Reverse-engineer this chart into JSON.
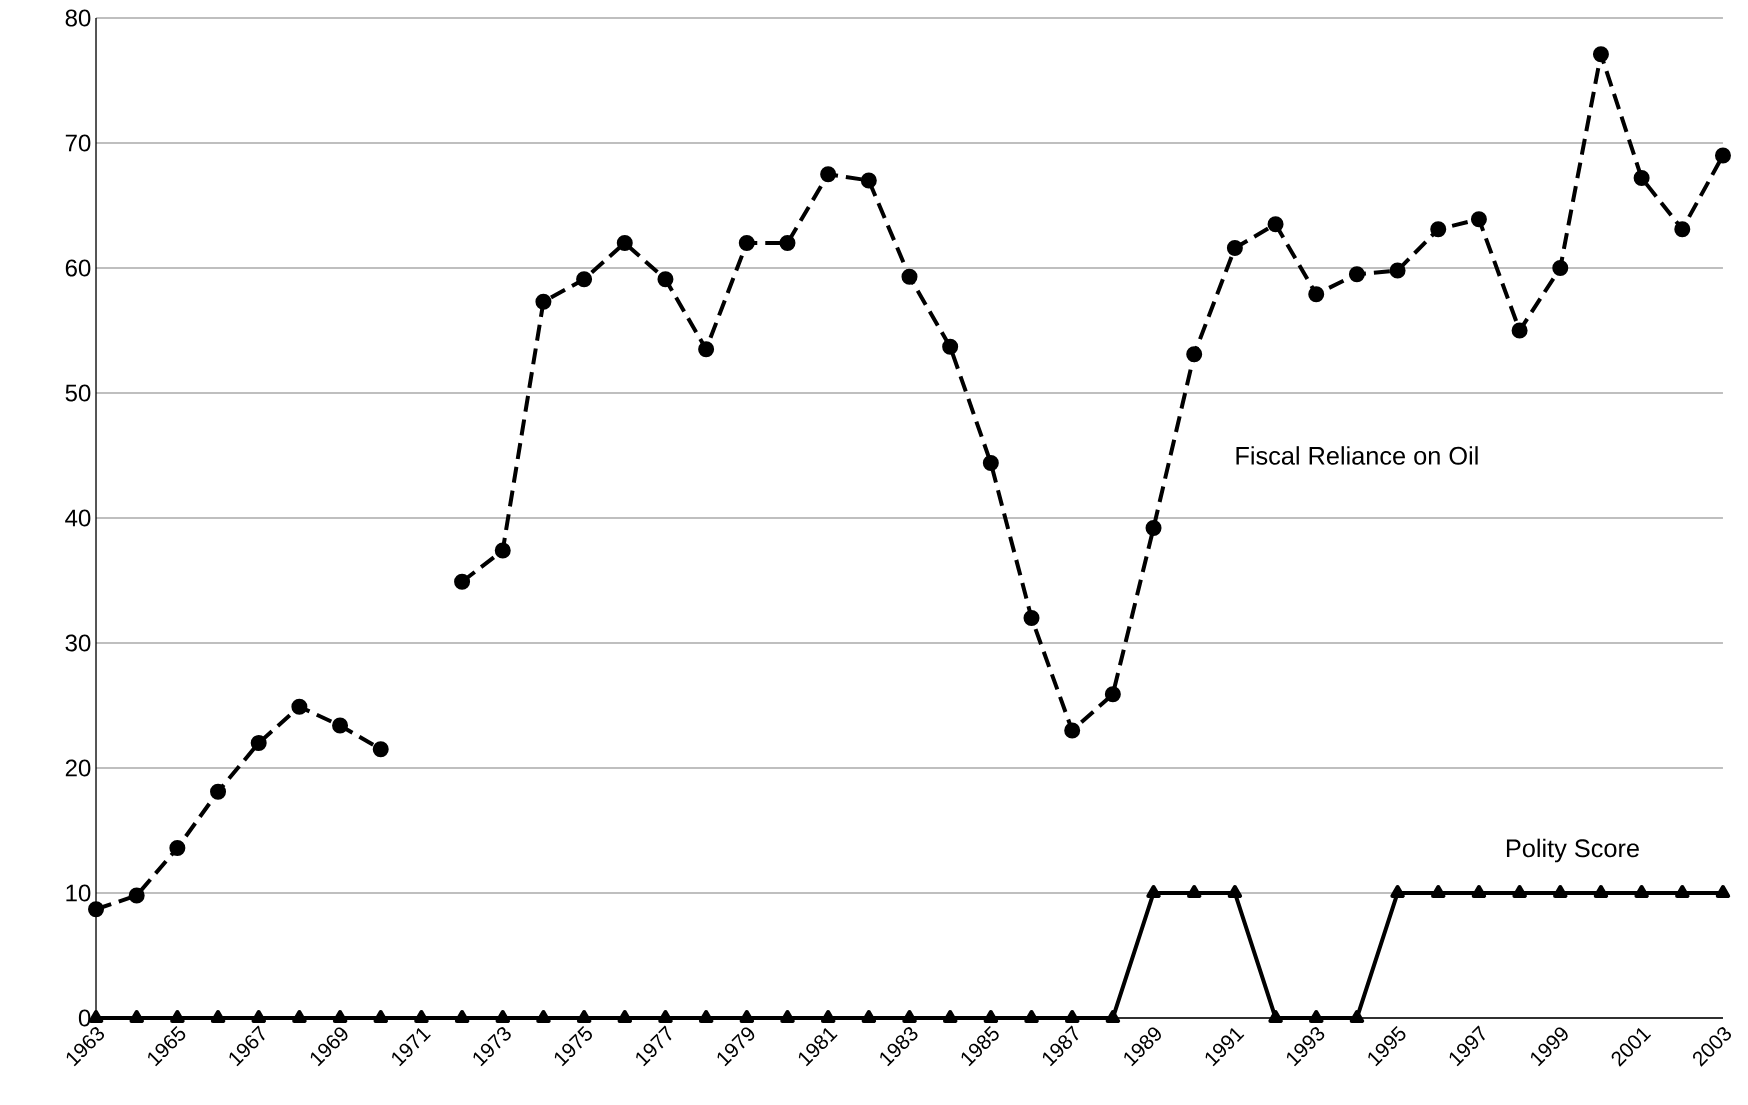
{
  "chart_data": {
    "type": "line",
    "categories": [
      "1963",
      null,
      "1965",
      null,
      "1967",
      null,
      "1969",
      null,
      "1971",
      null,
      "1973",
      null,
      "1975",
      null,
      "1977",
      null,
      "1979",
      null,
      "1981",
      null,
      "1983",
      null,
      "1985",
      null,
      "1987",
      null,
      "1989",
      null,
      "1991",
      null,
      "1993",
      null,
      "1995",
      null,
      "1997",
      null,
      "1999",
      null,
      "2001",
      null,
      "2003"
    ],
    "series": [
      {
        "name": "Fiscal Reliance on Oil",
        "color": "#000000",
        "marker": "circle",
        "line_style": "dashed",
        "values": [
          8.7,
          9.8,
          13.6,
          18.1,
          22.0,
          24.9,
          23.4,
          21.5,
          null,
          34.9,
          37.4,
          57.3,
          59.1,
          62.0,
          59.1,
          53.5,
          62.0,
          62.0,
          67.5,
          67.0,
          59.3,
          53.7,
          44.4,
          32.0,
          23.0,
          25.9,
          39.2,
          53.1,
          61.6,
          63.5,
          57.9,
          59.5,
          59.8,
          63.1,
          63.9,
          55.0,
          60.0,
          77.1,
          67.2,
          63.1,
          69.0
        ]
      },
      {
        "name": "Polity Score",
        "color": "#000000",
        "marker": "triangle",
        "line_style": "solid",
        "values": [
          0,
          0,
          0,
          0,
          0,
          0,
          0,
          0,
          0,
          0,
          0,
          0,
          0,
          0,
          0,
          0,
          0,
          0,
          0,
          0,
          0,
          0,
          0,
          0,
          0,
          0,
          10,
          10,
          10,
          0,
          0,
          0,
          10,
          10,
          10,
          10,
          10,
          10,
          10,
          10,
          10
        ]
      }
    ],
    "ylim": [
      0,
      80
    ],
    "yticks": [
      0,
      10,
      20,
      30,
      40,
      50,
      60,
      70,
      80
    ],
    "grid": "y",
    "legend": false
  }
}
